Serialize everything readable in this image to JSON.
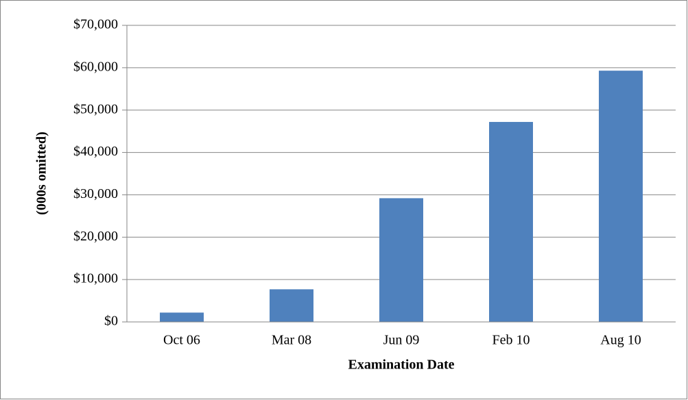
{
  "chart_data": {
    "type": "bar",
    "x_label": "Examination Date",
    "y_label": "(000s omitted)",
    "categories": [
      "Oct 06",
      "Mar 08",
      "Jun 09",
      "Feb 10",
      "Aug 10"
    ],
    "values": [
      2200,
      7700,
      29200,
      47200,
      59300
    ],
    "color": "#4f81bd",
    "ylim": [
      0,
      70000
    ],
    "yticks": [
      {
        "value": 0,
        "label": "$0"
      },
      {
        "value": 10000,
        "label": "$10,000"
      },
      {
        "value": 20000,
        "label": "$20,000"
      },
      {
        "value": 30000,
        "label": "$30,000"
      },
      {
        "value": 40000,
        "label": "$40,000"
      },
      {
        "value": 50000,
        "label": "$50,000"
      },
      {
        "value": 60000,
        "label": "$60,000"
      },
      {
        "value": 70000,
        "label": "$70,000"
      }
    ],
    "grid": true
  }
}
